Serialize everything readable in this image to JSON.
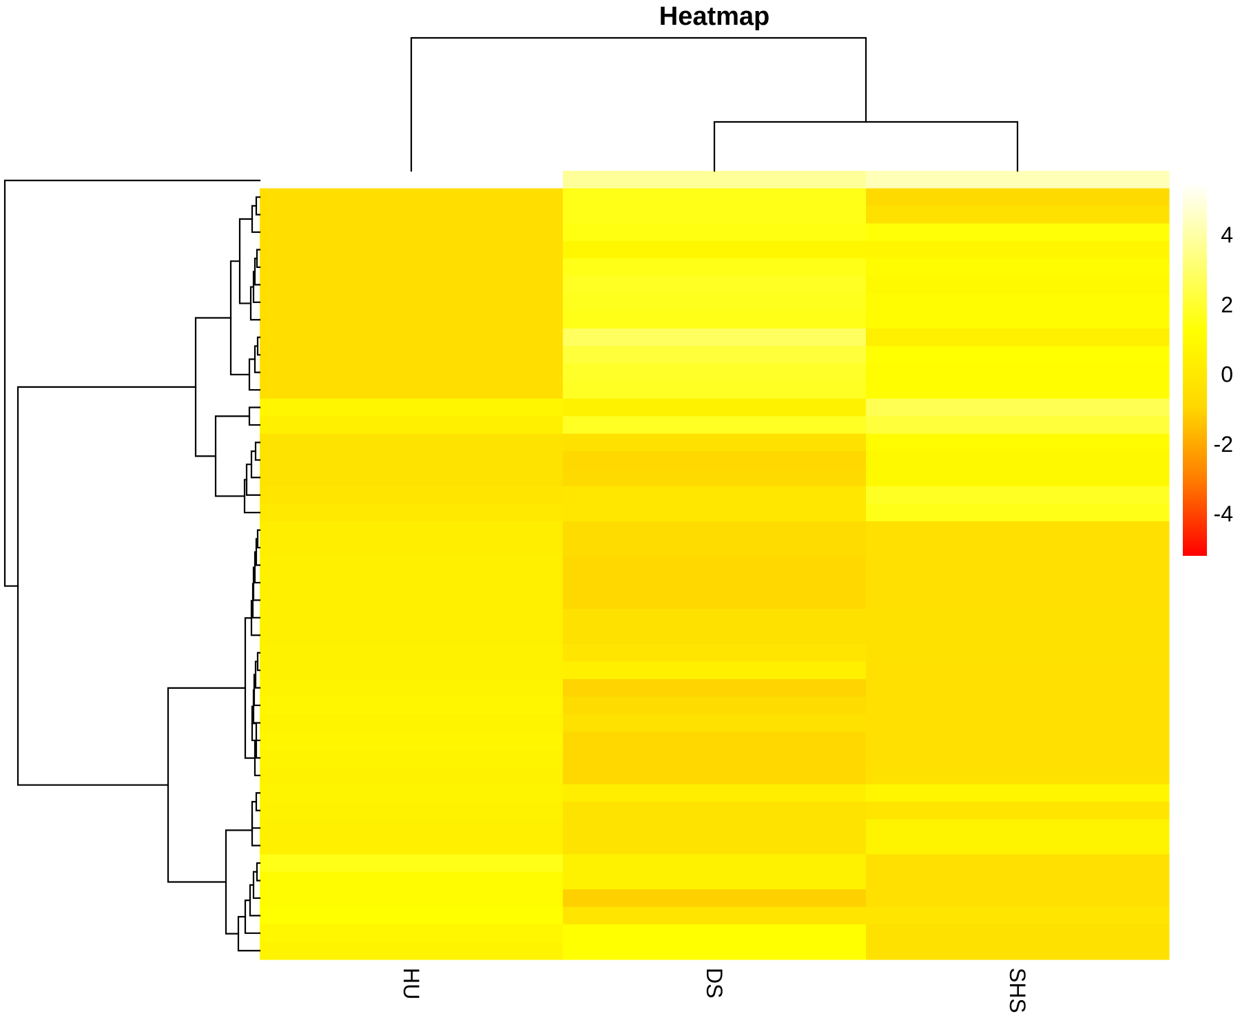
{
  "chart_data": {
    "type": "heatmap",
    "title": "Heatmap",
    "columns": [
      "HU",
      "DS",
      "SHS"
    ],
    "column_order": [
      "HU",
      "DS",
      "SHS"
    ],
    "row_count": 45,
    "values": [
      [
        null,
        3.8,
        4.3
      ],
      [
        -0.6,
        1.6,
        -0.8
      ],
      [
        -0.6,
        1.6,
        -0.4
      ],
      [
        -0.6,
        1.5,
        1.3
      ],
      [
        -0.6,
        0.8,
        0.7
      ],
      [
        -0.6,
        1.6,
        1.0
      ],
      [
        -0.6,
        1.8,
        0.9
      ],
      [
        -0.6,
        1.7,
        1.0
      ],
      [
        -0.6,
        1.6,
        1.0
      ],
      [
        -0.6,
        2.8,
        0.4
      ],
      [
        -0.6,
        2.2,
        1.2
      ],
      [
        -0.6,
        1.9,
        1.1
      ],
      [
        -0.6,
        1.8,
        1.1
      ],
      [
        0.7,
        0.5,
        2.6
      ],
      [
        0.4,
        1.8,
        2.2
      ],
      [
        -0.3,
        -0.4,
        1.0
      ],
      [
        -0.3,
        -0.9,
        0.9
      ],
      [
        -0.3,
        -0.8,
        0.9
      ],
      [
        -0.2,
        -0.1,
        1.8
      ],
      [
        0.0,
        -0.1,
        1.6
      ],
      [
        0.3,
        -0.7,
        -0.5
      ],
      [
        0.3,
        -0.7,
        -0.5
      ],
      [
        0.4,
        -0.9,
        -0.5
      ],
      [
        0.4,
        -0.9,
        -0.5
      ],
      [
        0.4,
        -0.9,
        -0.5
      ],
      [
        0.4,
        -0.4,
        -0.4
      ],
      [
        0.4,
        -0.4,
        -0.4
      ],
      [
        0.5,
        -0.2,
        -0.4
      ],
      [
        0.5,
        0.4,
        -0.5
      ],
      [
        0.6,
        -1.0,
        -0.5
      ],
      [
        0.7,
        -0.7,
        -0.5
      ],
      [
        0.6,
        -0.4,
        -0.5
      ],
      [
        0.7,
        -0.9,
        -0.5
      ],
      [
        0.6,
        -0.9,
        -0.5
      ],
      [
        0.5,
        -0.9,
        -0.4
      ],
      [
        0.6,
        0.3,
        0.7
      ],
      [
        0.5,
        -0.3,
        -0.2
      ],
      [
        0.4,
        -0.3,
        0.6
      ],
      [
        0.4,
        -0.3,
        0.6
      ],
      [
        1.6,
        0.5,
        -0.5
      ],
      [
        1.0,
        0.5,
        -0.5
      ],
      [
        1.0,
        -1.1,
        -0.5
      ],
      [
        1.2,
        -0.2,
        -0.2
      ],
      [
        0.8,
        1.2,
        -0.4
      ],
      [
        0.6,
        1.2,
        -0.4
      ]
    ],
    "color_scale": [
      "#ff0000",
      "#ff7a00",
      "#ffd800",
      "#ffff00",
      "#ffff80",
      "#ffffff"
    ],
    "color_range": [
      -5.2,
      5.5
    ],
    "legend_ticks": [
      4,
      2,
      0,
      -2,
      -4
    ],
    "legend_tick_labels": [
      "4",
      "2",
      "0",
      "-2",
      "-4"
    ],
    "legend_placement": "right",
    "grid": false,
    "column_dendrogram": {
      "merges": [
        {
          "left": "DS",
          "right": "SHS",
          "height": 1.0
        },
        {
          "left": "HU",
          "right": [
            "DS",
            "SHS"
          ],
          "height": 2.0
        }
      ]
    },
    "row_dendrogram": {
      "shown": true,
      "side": "left"
    }
  }
}
